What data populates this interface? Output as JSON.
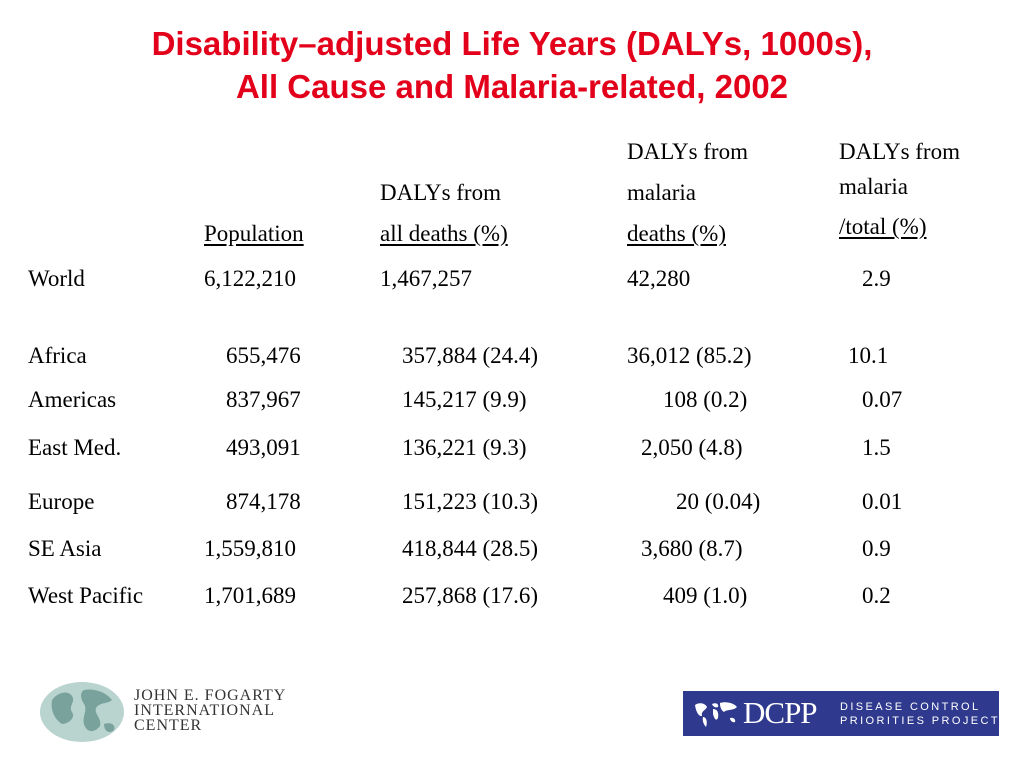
{
  "title": {
    "line1": "Disability–adjusted Life Years (DALYs, 1000s),",
    "line2": "All Cause and Malaria-related, 2002"
  },
  "headers": {
    "population": "Population",
    "all_deaths": {
      "line1": "DALYs from",
      "line2": "all deaths (%)"
    },
    "malaria_deaths": {
      "line1": "DALYs from",
      "line2": "malaria",
      "line3": "deaths (%)"
    },
    "malaria_total": {
      "line1": "DALYs from",
      "line2": "malaria",
      "line3": "/total (%)"
    }
  },
  "rows": [
    {
      "region": "World",
      "population": "6,122,210",
      "all_deaths": "1,467,257",
      "malaria_deaths": "42,280",
      "malaria_total": "2.9"
    },
    {
      "region": "Africa",
      "population": "655,476",
      "all_deaths": "357,884 (24.4)",
      "malaria_deaths": "36,012 (85.2)",
      "malaria_total": "10.1"
    },
    {
      "region": "Americas",
      "population": "837,967",
      "all_deaths": "145,217 (9.9)",
      "malaria_deaths": "108 (0.2)",
      "malaria_total": "0.07"
    },
    {
      "region": "East Med.",
      "population": "493,091",
      "all_deaths": "136,221 (9.3)",
      "malaria_deaths": "2,050 (4.8)",
      "malaria_total": "1.5"
    },
    {
      "region": "Europe",
      "population": "874,178",
      "all_deaths": "151,223 (10.3)",
      "malaria_deaths": "20 (0.04)",
      "malaria_total": "0.01"
    },
    {
      "region": "SE Asia",
      "population": "1,559,810",
      "all_deaths": "418,844 (28.5)",
      "malaria_deaths": "3,680 (8.7)",
      "malaria_total": "0.9"
    },
    {
      "region": "West Pacific",
      "population": "1,701,689",
      "all_deaths": "257,868 (17.6)",
      "malaria_deaths": "409 (1.0)",
      "malaria_total": "0.2"
    }
  ],
  "logos": {
    "fogarty": {
      "line1": "JOHN E. FOGARTY",
      "line2": "INTERNATIONAL",
      "line3": "CENTER"
    },
    "dcpp": {
      "abbr": "DCPP",
      "line1": "DISEASE CONTROL",
      "line2": "PRIORITIES PROJECT"
    }
  },
  "colors": {
    "title": "#e3001b",
    "dcpp_background": "#2f3a8f"
  }
}
